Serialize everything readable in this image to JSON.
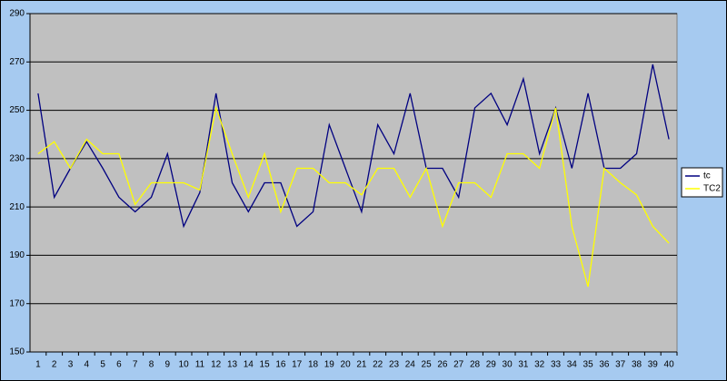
{
  "chart_data": {
    "type": "line",
    "categories": [
      "1",
      "2",
      "3",
      "4",
      "5",
      "6",
      "7",
      "8",
      "9",
      "10",
      "11",
      "12",
      "13",
      "14",
      "15",
      "16",
      "17",
      "18",
      "19",
      "20",
      "21",
      "22",
      "23",
      "24",
      "25",
      "26",
      "27",
      "28",
      "29",
      "30",
      "31",
      "32",
      "33",
      "34",
      "35",
      "36",
      "37",
      "38",
      "39",
      "40"
    ],
    "series": [
      {
        "name": "tc",
        "color": "#000080",
        "values": [
          257,
          214,
          226,
          237,
          226,
          214,
          208,
          214,
          232,
          202,
          216,
          257,
          220,
          208,
          220,
          220,
          202,
          208,
          244,
          226,
          208,
          244,
          232,
          257,
          226,
          226,
          214,
          251,
          257,
          244,
          263,
          232,
          251,
          226,
          257,
          226,
          226,
          232,
          269,
          238
        ]
      },
      {
        "name": "TC2",
        "color": "#ffff00",
        "values": [
          232,
          237,
          226,
          238,
          232,
          232,
          211,
          220,
          220,
          220,
          217,
          251,
          232,
          214,
          232,
          208,
          226,
          226,
          220,
          220,
          215,
          226,
          226,
          214,
          226,
          202,
          220,
          220,
          214,
          232,
          232,
          226,
          251,
          202,
          177,
          226,
          220,
          215,
          202,
          195
        ]
      }
    ],
    "ylim": [
      150,
      290
    ],
    "yticks": [
      150,
      170,
      190,
      210,
      230,
      250,
      270,
      290
    ],
    "grid": true,
    "legend": "right"
  }
}
